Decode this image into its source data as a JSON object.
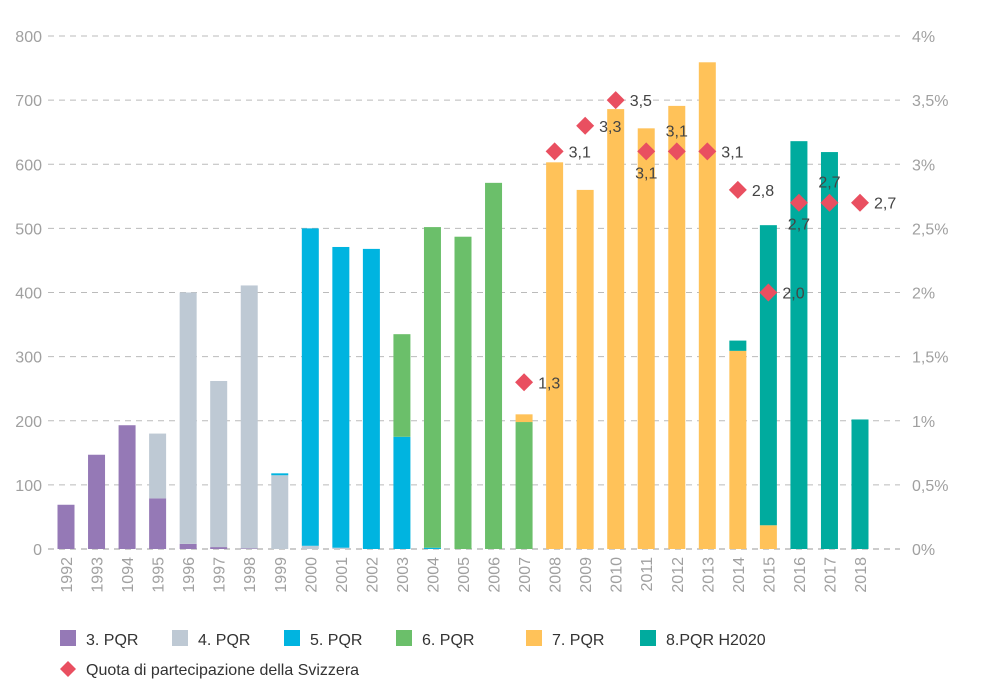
{
  "chart_data": {
    "type": "bar",
    "stacked": true,
    "categories": [
      "1992",
      "1993",
      "1094",
      "1995",
      "1996",
      "1997",
      "1998",
      "1999",
      "2000",
      "2001",
      "2002",
      "2003",
      "2004",
      "2005",
      "2006",
      "2007",
      "2008",
      "2009",
      "2010",
      "2011",
      "2012",
      "2013",
      "2014",
      "2015",
      "2016",
      "2017",
      "2018"
    ],
    "y_left": {
      "range": [
        0,
        800
      ],
      "ticks": [
        "0",
        "100",
        "200",
        "300",
        "400",
        "500",
        "600",
        "700",
        "800"
      ]
    },
    "y_right": {
      "range": [
        0,
        4
      ],
      "ticks": [
        "0%",
        "0,5%",
        "1%",
        "1,5%",
        "2%",
        "2,5%",
        "3%",
        "3,5%",
        "4%"
      ]
    },
    "grid": "horizontal dashed",
    "legend_position": "bottom",
    "series": [
      {
        "name": "3. PQR",
        "color": "#9579b6",
        "values": [
          69,
          147,
          193,
          79,
          8,
          3,
          1,
          0,
          0,
          0,
          0,
          0,
          0,
          0,
          0,
          0,
          0,
          0,
          0,
          0,
          0,
          0,
          0,
          0,
          0,
          0,
          0
        ]
      },
      {
        "name": "4. PQR",
        "color": "#bec9d4",
        "values": [
          0,
          0,
          0,
          101,
          392,
          259,
          410,
          115,
          5,
          2,
          0,
          0,
          0,
          0,
          0,
          0,
          0,
          0,
          0,
          0,
          0,
          0,
          0,
          0,
          0,
          0,
          0
        ]
      },
      {
        "name": "5. PQR",
        "color": "#00b4e0",
        "values": [
          0,
          0,
          0,
          0,
          0,
          0,
          0,
          3,
          495,
          469,
          468,
          175,
          2,
          0,
          0,
          0,
          0,
          0,
          0,
          0,
          0,
          0,
          0,
          0,
          0,
          0,
          0
        ]
      },
      {
        "name": "6. PQR",
        "color": "#6bbf6a",
        "values": [
          0,
          0,
          0,
          0,
          0,
          0,
          0,
          0,
          0,
          0,
          0,
          160,
          500,
          487,
          571,
          198,
          0,
          0,
          0,
          0,
          0,
          0,
          0,
          0,
          0,
          0,
          0
        ]
      },
      {
        "name": "7. PQR",
        "color": "#ffc259",
        "values": [
          0,
          0,
          0,
          0,
          0,
          0,
          0,
          0,
          0,
          0,
          0,
          0,
          0,
          0,
          0,
          12,
          603,
          560,
          686,
          656,
          691,
          759,
          309,
          37,
          0,
          0,
          0
        ]
      },
      {
        "name": "8.PQR H2020",
        "color": "#00ab9e",
        "values": [
          0,
          0,
          0,
          0,
          0,
          0,
          0,
          0,
          0,
          0,
          0,
          0,
          0,
          0,
          0,
          0,
          0,
          0,
          0,
          0,
          0,
          0,
          16,
          468,
          636,
          619,
          202
        ]
      }
    ],
    "line_series": {
      "name": "Quota di partecipazione della Svizzera",
      "color": "#e94f60",
      "marker": "diamond",
      "axis": "right",
      "x": [
        "2007",
        "2008",
        "2009",
        "2010",
        "2011",
        "2012",
        "2013",
        "2014",
        "2015",
        "2016",
        "2017",
        "2018"
      ],
      "values": [
        1.3,
        3.1,
        3.3,
        3.5,
        3.1,
        3.1,
        3.1,
        2.8,
        2.0,
        2.7,
        2.7,
        2.7
      ],
      "labels": [
        "1,3",
        "3,1",
        "3,3",
        "3,5",
        "3,1",
        "3,1",
        "3,1",
        "2,8",
        "2,0",
        "2,7",
        "2,7",
        "2,7"
      ]
    }
  }
}
